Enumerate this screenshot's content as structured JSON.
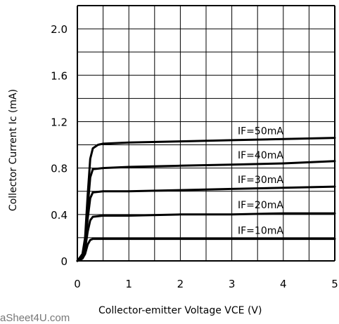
{
  "chart_data": {
    "type": "line",
    "title": "",
    "xlabel": "Collector-emitter Voltage VCE (V)",
    "ylabel": "Collector Current Ic (mA)",
    "xlim": [
      0,
      5
    ],
    "ylim": [
      0,
      2.2
    ],
    "x_ticks": [
      "0",
      "1",
      "2",
      "3",
      "4",
      "5"
    ],
    "y_ticks": [
      "0",
      "0.4",
      "0.8",
      "1.2",
      "1.6",
      "2.0"
    ],
    "grid": true,
    "series": [
      {
        "name": "IF=10mA",
        "x": [
          0,
          0.1,
          0.15,
          0.2,
          0.25,
          0.3,
          0.5,
          1,
          2,
          3,
          4,
          5
        ],
        "y": [
          0,
          0.02,
          0.06,
          0.14,
          0.18,
          0.19,
          0.19,
          0.19,
          0.19,
          0.19,
          0.19,
          0.19
        ]
      },
      {
        "name": "IF=20mA",
        "x": [
          0,
          0.1,
          0.15,
          0.2,
          0.25,
          0.3,
          0.5,
          1,
          2,
          3,
          4,
          5
        ],
        "y": [
          0,
          0.03,
          0.1,
          0.25,
          0.35,
          0.38,
          0.39,
          0.39,
          0.4,
          0.4,
          0.41,
          0.41
        ]
      },
      {
        "name": "IF=30mA",
        "x": [
          0,
          0.1,
          0.15,
          0.2,
          0.25,
          0.3,
          0.5,
          1,
          2,
          3,
          4,
          5
        ],
        "y": [
          0,
          0.04,
          0.13,
          0.36,
          0.54,
          0.59,
          0.6,
          0.6,
          0.61,
          0.62,
          0.63,
          0.64
        ]
      },
      {
        "name": "IF=40mA",
        "x": [
          0,
          0.1,
          0.15,
          0.2,
          0.25,
          0.3,
          0.5,
          1,
          2,
          3,
          4,
          5
        ],
        "y": [
          0,
          0.05,
          0.16,
          0.46,
          0.72,
          0.79,
          0.8,
          0.81,
          0.82,
          0.83,
          0.84,
          0.86
        ]
      },
      {
        "name": "IF=50mA",
        "x": [
          0,
          0.1,
          0.15,
          0.2,
          0.25,
          0.3,
          0.4,
          0.5,
          1,
          2,
          3,
          4,
          5
        ],
        "y": [
          0,
          0.06,
          0.2,
          0.56,
          0.88,
          0.97,
          1.0,
          1.01,
          1.02,
          1.03,
          1.04,
          1.05,
          1.06
        ]
      }
    ]
  },
  "watermark": "aSheet4U.com"
}
